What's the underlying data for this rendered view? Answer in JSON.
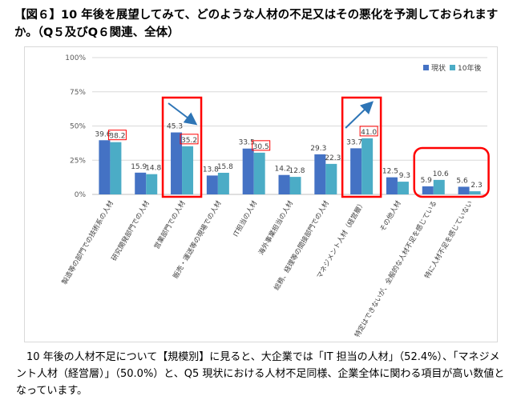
{
  "title": "【図６】10 年後を展望してみて、どのような人材の不足又はその悪化を予測しておられますか。（Q５及びQ６関連、全体）",
  "body_text": "10 年後の人材不足について【規模別】に見ると、大企業では「IT 担当の人材」（52.4%）、「マネジメント人材（経営層）」（50.0%）と、Q5 現状における人材不足同様、企業全体に関わる項目が高い数値となっています。",
  "colors": {
    "current": "#4472c4",
    "future": "#4bacc6",
    "highlight": "#ff0000",
    "arrow": "#2e75b6",
    "grid": "#d9d9d9"
  },
  "chart_data": {
    "type": "bar",
    "ylim": [
      0,
      100
    ],
    "yticks": [
      "0%",
      "25%",
      "50%",
      "75%",
      "100%"
    ],
    "legend_position": "top-right",
    "categories": [
      "製造等の部門での技術系の人材",
      "研究開発部門での人材",
      "営業部門での人材",
      "販売・運送等の現場での人材",
      "IT担当の人材",
      "海外事業担当の人材",
      "総務、経理等の間接部門での人材",
      "マネジメント人材（経営層）",
      "その他人材",
      "特定はできないが、全般的な人材不足を感じている",
      "特に人材不足を感じていない"
    ],
    "series": [
      {
        "name": "現状",
        "values": [
          39.6,
          15.9,
          45.3,
          13.8,
          33.5,
          14.2,
          29.3,
          33.7,
          12.5,
          5.9,
          5.6
        ]
      },
      {
        "name": "10年後",
        "values": [
          38.2,
          14.8,
          35.2,
          15.8,
          30.5,
          12.8,
          22.3,
          41.0,
          9.3,
          10.6,
          2.3
        ]
      }
    ],
    "value_labels": [
      [
        "39.6",
        "38.2"
      ],
      [
        "15.9",
        "14.8"
      ],
      [
        "45.3",
        "35.2"
      ],
      [
        "13.8",
        "15.8"
      ],
      [
        "33.5",
        "30.5"
      ],
      [
        "14.2",
        "12.8"
      ],
      [
        "29.3",
        "22.3"
      ],
      [
        "33.7",
        "41.0"
      ],
      [
        "12.5",
        "9.3"
      ],
      [
        "5.9",
        "10.6"
      ],
      [
        "5.6",
        "2.3"
      ]
    ],
    "boxed_labels": [
      [
        0,
        1
      ],
      [
        2,
        1
      ],
      [
        4,
        1
      ],
      [
        7,
        1
      ]
    ],
    "highlight_groups": [
      [
        2
      ],
      [
        7
      ],
      [
        9,
        10
      ]
    ],
    "arrows": [
      {
        "group": 2,
        "direction": "down"
      },
      {
        "group": 7,
        "direction": "up"
      }
    ]
  }
}
